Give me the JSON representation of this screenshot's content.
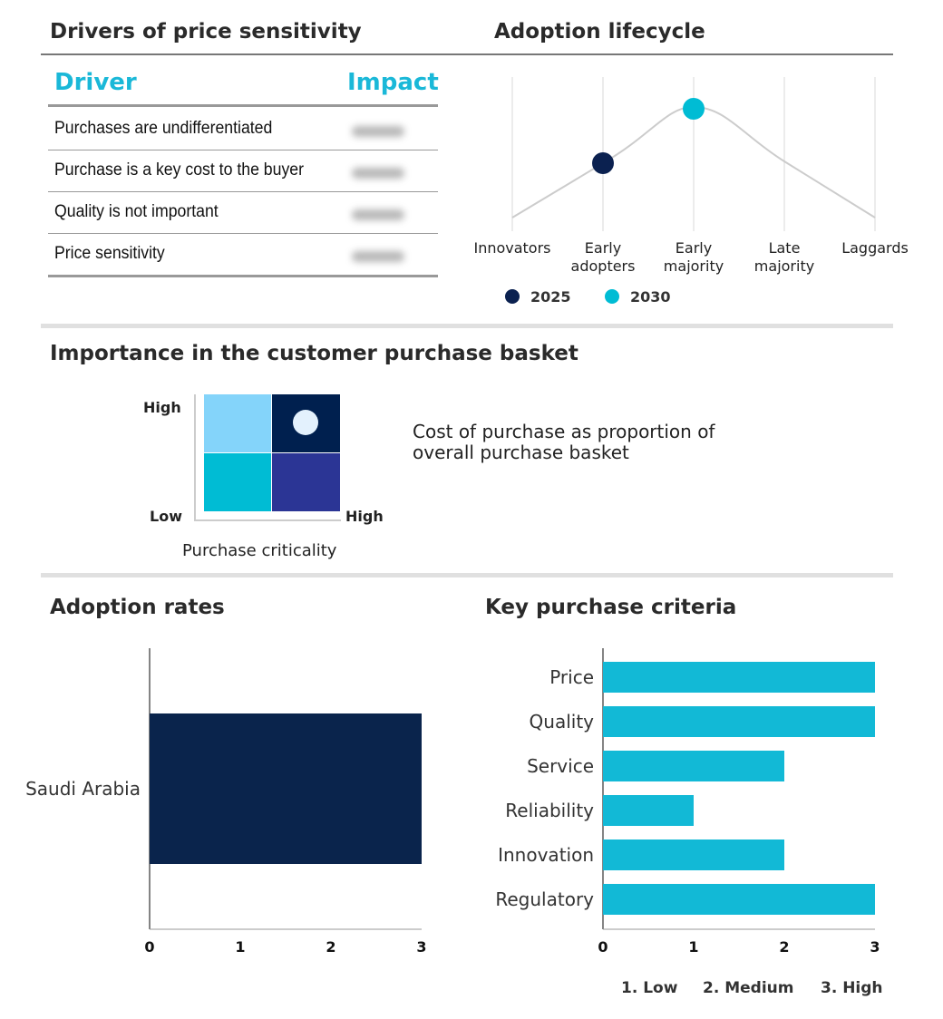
{
  "drivers": {
    "title": "Drivers of price sensitivity",
    "col_driver": "Driver",
    "col_impact": "Impact",
    "rows": [
      "Purchases are undifferentiated",
      "Purchase is a key cost to the buyer",
      "Quality is not important",
      "Price sensitivity"
    ]
  },
  "lifecycle": {
    "title": "Adoption lifecycle",
    "stages": [
      "Innovators",
      "Early adopters",
      "Early majority",
      "Late majority",
      "Laggards"
    ],
    "stage_lines": [
      [
        "Innovators"
      ],
      [
        "Early",
        "adopters"
      ],
      [
        "Early",
        "majority"
      ],
      [
        "Late",
        "majority"
      ],
      [
        "Laggards"
      ]
    ],
    "markers": [
      {
        "label": "2025",
        "stage": "Early adopters",
        "color": "#0b2150"
      },
      {
        "label": "2030",
        "stage": "Early majority",
        "color": "#00bcd4"
      }
    ]
  },
  "basket": {
    "title": "Importance in the customer purchase basket",
    "y_high": "High",
    "y_low": "Low",
    "x_high": "High",
    "x_label": "Purchase criticality",
    "y_label": "Cost of purchase as proportion of overall purchase basket",
    "position": "High criticality / High cost",
    "colors": {
      "tl": "#84d4fa",
      "tr": "#00204f",
      "bl": "#00bcd4",
      "br": "#2b3595"
    }
  },
  "chart_data": [
    {
      "type": "bar",
      "orientation": "horizontal",
      "title": "Adoption rates",
      "categories": [
        "Saudi Arabia"
      ],
      "values": [
        3
      ],
      "xlim": [
        0,
        3
      ],
      "xticks": [
        "0",
        "1",
        "2",
        "3"
      ],
      "color": "#0a244c"
    },
    {
      "type": "bar",
      "orientation": "horizontal",
      "title": "Key purchase criteria",
      "categories": [
        "Price",
        "Quality",
        "Service",
        "Reliability",
        "Innovation",
        "Regulatory"
      ],
      "values": [
        3,
        3,
        2,
        1,
        2,
        3
      ],
      "xlim": [
        0,
        3
      ],
      "xticks": [
        "0",
        "1",
        "2",
        "3"
      ],
      "color": "#12b9d6",
      "legend": [
        "1. Low",
        "2. Medium",
        "3. High"
      ]
    }
  ]
}
